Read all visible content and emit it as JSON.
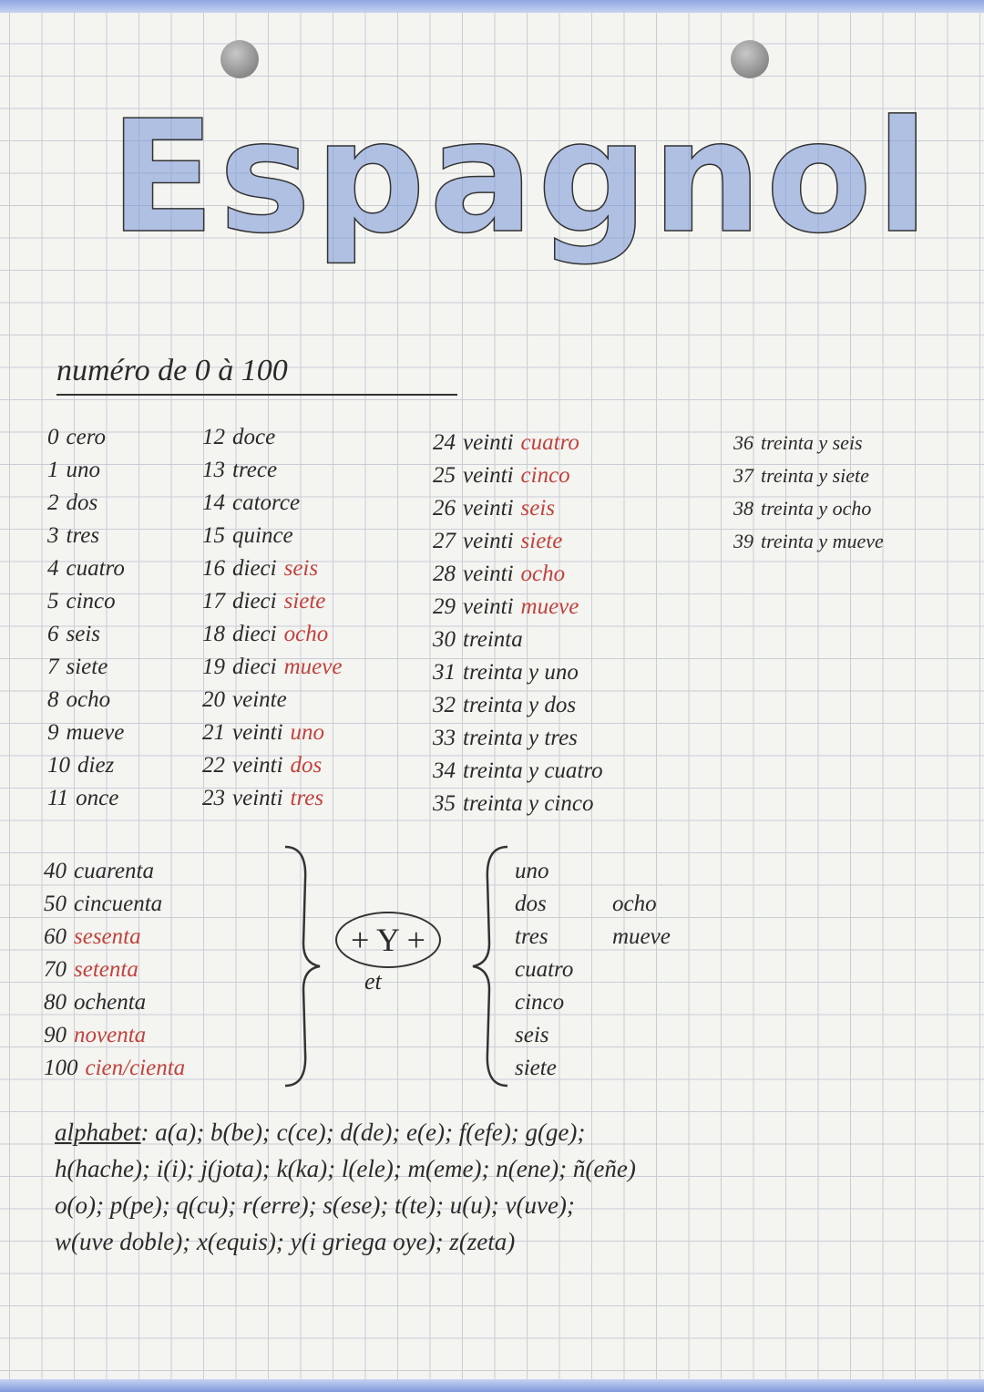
{
  "title": "Espagnol",
  "subtitle": "numéro de 0 à 100",
  "columns": [
    [
      [
        "0",
        "cero",
        ""
      ],
      [
        "1",
        "uno",
        ""
      ],
      [
        "2",
        "dos",
        ""
      ],
      [
        "3",
        "tres",
        ""
      ],
      [
        "4",
        "cuatro",
        ""
      ],
      [
        "5",
        "cinco",
        ""
      ],
      [
        "6",
        "seis",
        ""
      ],
      [
        "7",
        "siete",
        ""
      ],
      [
        "8",
        "ocho",
        ""
      ],
      [
        "9",
        "mueve",
        ""
      ],
      [
        "10",
        "diez",
        ""
      ],
      [
        "11",
        "once",
        ""
      ]
    ],
    [
      [
        "12",
        "doce",
        ""
      ],
      [
        "13",
        "trece",
        ""
      ],
      [
        "14",
        "catorce",
        ""
      ],
      [
        "15",
        "quince",
        ""
      ],
      [
        "16",
        "dieci",
        "seis"
      ],
      [
        "17",
        "dieci",
        "siete"
      ],
      [
        "18",
        "dieci",
        "ocho"
      ],
      [
        "19",
        "dieci",
        "mueve"
      ],
      [
        "20",
        "veinte",
        ""
      ],
      [
        "21",
        "veinti",
        "uno"
      ],
      [
        "22",
        "veinti",
        "dos"
      ],
      [
        "23",
        "veinti",
        "tres"
      ]
    ],
    [
      [
        "24",
        "veinti",
        "cuatro"
      ],
      [
        "25",
        "veinti",
        "cinco"
      ],
      [
        "26",
        "veinti",
        "seis"
      ],
      [
        "27",
        "veinti",
        "siete"
      ],
      [
        "28",
        "veinti",
        "ocho"
      ],
      [
        "29",
        "veinti",
        "mueve"
      ],
      [
        "30",
        "treinta",
        ""
      ],
      [
        "31",
        "treinta y uno",
        ""
      ],
      [
        "32",
        "treinta y dos",
        ""
      ],
      [
        "33",
        "treinta y tres",
        ""
      ],
      [
        "34",
        "treinta y cuatro",
        ""
      ],
      [
        "35",
        "treinta y cinco",
        ""
      ]
    ],
    [
      [
        "36",
        "treinta y seis",
        ""
      ],
      [
        "37",
        "treinta y siete",
        ""
      ],
      [
        "38",
        "treinta y ocho",
        ""
      ],
      [
        "39",
        "treinta y mueve",
        ""
      ]
    ]
  ],
  "tens": [
    [
      "40",
      "cuarenta",
      false
    ],
    [
      "50",
      "cincuenta",
      false
    ],
    [
      "60",
      "sesenta",
      true
    ],
    [
      "70",
      "setenta",
      true
    ],
    [
      "80",
      "ochenta",
      false
    ],
    [
      "90",
      "noventa",
      true
    ],
    [
      "100",
      "cien/cienta",
      true
    ]
  ],
  "connector": {
    "symbol": "+ Y +",
    "translation": "et"
  },
  "units_col1": [
    "uno",
    "dos",
    "tres",
    "cuatro",
    "cinco",
    "seis",
    "siete"
  ],
  "units_col2": [
    "ocho",
    "mueve"
  ],
  "alphabet": {
    "label": "alphabet",
    "lines": [
      ": a(a); b(be); c(ce); d(de); e(e); f(efe); g(ge);",
      "h(hache); i(i); j(jota); k(ka); l(ele); m(eme); n(ene); ñ(eñe)",
      "o(o); p(pe); q(cu); r(erre); s(ese); t(te); u(u); v(uve);",
      "w(uve doble); x(equis); y(i griega oye); z(zeta)"
    ]
  },
  "colors": {
    "red_ink": "#c0423c",
    "green_ink": "#3b8a5c",
    "title_blue": "#7896d7",
    "grid": "#c9cdd6"
  }
}
